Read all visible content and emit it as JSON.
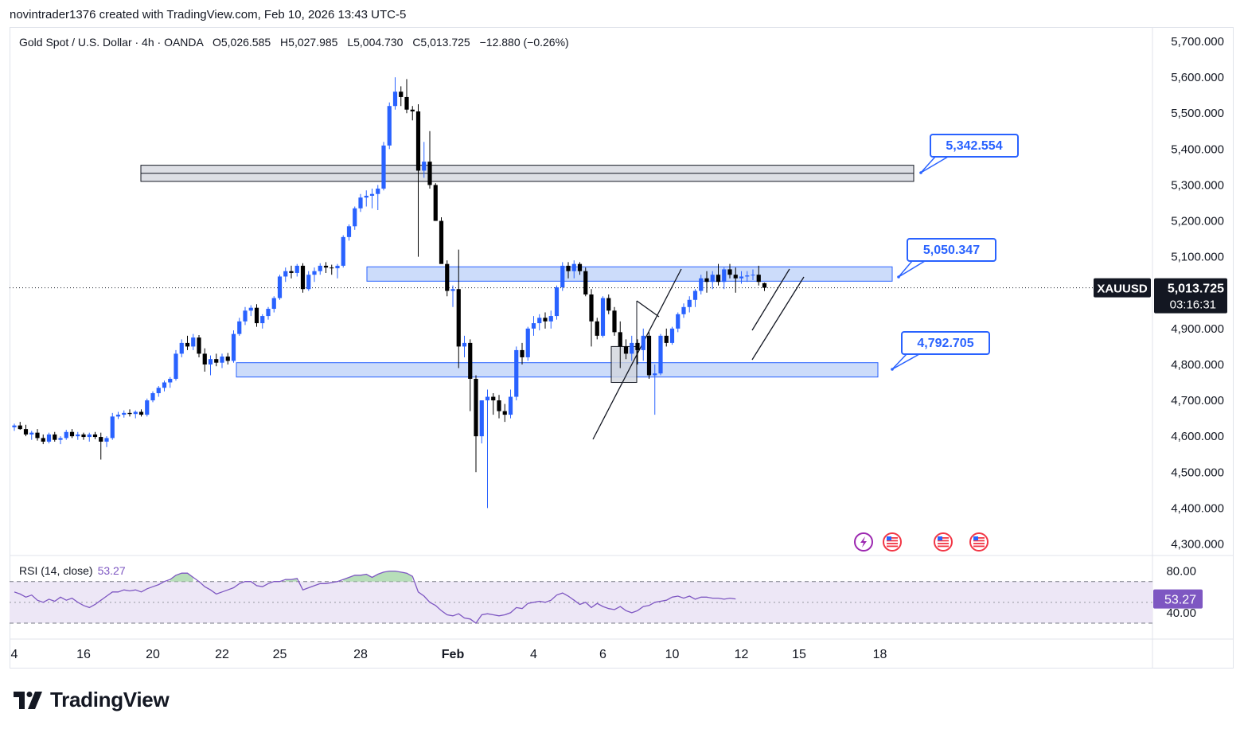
{
  "header": {
    "attribution": "novintrader1376 created with TradingView.com, Feb 10, 2026 13:43 UTC-5"
  },
  "legend": {
    "symbol_text": "Gold Spot / U.S. Dollar · 4h · OANDA",
    "open": "O5,026.585",
    "high": "H5,027.985",
    "low": "L5,004.730",
    "close": "C5,013.725",
    "change": "−12.880 (−0.26%)"
  },
  "rsi_legend": {
    "label": "RSI (14, close)",
    "value": "53.27"
  },
  "footer": {
    "brand": "TradingView"
  },
  "colors": {
    "up": "#2962ff",
    "down": "#000000",
    "zone_blue": "#bbd0f8",
    "zone_gray": "#d1d4dc",
    "rsi_line": "#7e57c2",
    "rsi_band": "#ede7f6",
    "rsi_overbought_fill": "#a5d6a7",
    "callout_border": "#2962ff"
  },
  "chart_data": [
    {
      "type": "candlestick",
      "title": "Gold Spot / U.S. Dollar",
      "interval": "4h",
      "y_axis": {
        "ticks": [
          4300,
          4400,
          4500,
          4600,
          4700,
          4800,
          4900,
          5000,
          5100,
          5200,
          5300,
          5400,
          5500,
          5600,
          5700
        ],
        "tick_labels": [
          "4,300.000",
          "4,400.000",
          "4,500.000",
          "4,600.000",
          "4,700.000",
          "4,800.000",
          "4,900.000",
          "5,000.000",
          "5,100.000",
          "5,200.000",
          "5,300.000",
          "5,400.000",
          "5,500.000",
          "5,600.000",
          "5,700.000"
        ],
        "range": [
          4270,
          5740
        ]
      },
      "x_axis": {
        "tick_labels": [
          "4",
          "16",
          "20",
          "22",
          "25",
          "28",
          "Feb",
          "4",
          "6",
          "10",
          "12",
          "15",
          "18"
        ],
        "tick_index": [
          0,
          12,
          24,
          36,
          46,
          60,
          76,
          90,
          102,
          114,
          126,
          136,
          150
        ]
      },
      "last_price": {
        "symbol": "XAUUSD",
        "price": "5,013.725",
        "countdown": "03:16:31",
        "value": 5013.725
      },
      "candles": [
        [
          4625,
          4635,
          4615,
          4630
        ],
        [
          4630,
          4640,
          4618,
          4620
        ],
        [
          4620,
          4632,
          4600,
          4605
        ],
        [
          4605,
          4615,
          4590,
          4610
        ],
        [
          4610,
          4620,
          4588,
          4595
        ],
        [
          4595,
          4605,
          4578,
          4585
        ],
        [
          4585,
          4610,
          4580,
          4605
        ],
        [
          4605,
          4612,
          4585,
          4590
        ],
        [
          4590,
          4600,
          4578,
          4595
        ],
        [
          4595,
          4618,
          4590,
          4612
        ],
        [
          4612,
          4620,
          4595,
          4600
        ],
        [
          4600,
          4612,
          4590,
          4605
        ],
        [
          4605,
          4610,
          4590,
          4598
        ],
        [
          4598,
          4610,
          4585,
          4605
        ],
        [
          4605,
          4612,
          4592,
          4598
        ],
        [
          4598,
          4610,
          4535,
          4585
        ],
        [
          4585,
          4600,
          4570,
          4595
        ],
        [
          4595,
          4665,
          4590,
          4655
        ],
        [
          4655,
          4668,
          4648,
          4660
        ],
        [
          4660,
          4672,
          4652,
          4665
        ],
        [
          4665,
          4675,
          4655,
          4662
        ],
        [
          4662,
          4672,
          4650,
          4668
        ],
        [
          4668,
          4675,
          4655,
          4660
        ],
        [
          4660,
          4705,
          4655,
          4700
        ],
        [
          4700,
          4725,
          4695,
          4720
        ],
        [
          4720,
          4740,
          4710,
          4735
        ],
        [
          4735,
          4755,
          4725,
          4750
        ],
        [
          4750,
          4765,
          4735,
          4760
        ],
        [
          4760,
          4840,
          4755,
          4830
        ],
        [
          4830,
          4870,
          4820,
          4860
        ],
        [
          4860,
          4880,
          4840,
          4850
        ],
        [
          4850,
          4885,
          4840,
          4875
        ],
        [
          4875,
          4882,
          4820,
          4830
        ],
        [
          4830,
          4845,
          4780,
          4800
        ],
        [
          4800,
          4825,
          4770,
          4815
        ],
        [
          4815,
          4830,
          4795,
          4805
        ],
        [
          4805,
          4830,
          4790,
          4822
        ],
        [
          4822,
          4832,
          4800,
          4810
        ],
        [
          4810,
          4895,
          4805,
          4885
        ],
        [
          4885,
          4930,
          4880,
          4920
        ],
        [
          4920,
          4960,
          4910,
          4950
        ],
        [
          4950,
          4965,
          4935,
          4958
        ],
        [
          4958,
          4968,
          4905,
          4915
        ],
        [
          4915,
          4940,
          4900,
          4935
        ],
        [
          4935,
          4960,
          4925,
          4955
        ],
        [
          4955,
          4990,
          4945,
          4985
        ],
        [
          4985,
          5050,
          4980,
          5045
        ],
        [
          5045,
          5070,
          5030,
          5060
        ],
        [
          5060,
          5075,
          5040,
          5055
        ],
        [
          5055,
          5080,
          5045,
          5075
        ],
        [
          5075,
          5082,
          5000,
          5010
        ],
        [
          5010,
          5060,
          5005,
          5050
        ],
        [
          5050,
          5070,
          5030,
          5060
        ],
        [
          5060,
          5082,
          5050,
          5075
        ],
        [
          5075,
          5085,
          5055,
          5070
        ],
        [
          5070,
          5078,
          5050,
          5068
        ],
        [
          5068,
          5080,
          5040,
          5075
        ],
        [
          5075,
          5160,
          5070,
          5155
        ],
        [
          5155,
          5190,
          5145,
          5185
        ],
        [
          5185,
          5240,
          5175,
          5235
        ],
        [
          5235,
          5275,
          5225,
          5265
        ],
        [
          5265,
          5285,
          5240,
          5270
        ],
        [
          5270,
          5290,
          5235,
          5275
        ],
        [
          5275,
          5300,
          5230,
          5290
        ],
        [
          5290,
          5420,
          5285,
          5410
        ],
        [
          5410,
          5530,
          5400,
          5520
        ],
        [
          5520,
          5600,
          5510,
          5560
        ],
        [
          5560,
          5575,
          5520,
          5545
        ],
        [
          5545,
          5595,
          5500,
          5510
        ],
        [
          5510,
          5520,
          5480,
          5505
        ],
        [
          5505,
          5525,
          5100,
          5340
        ],
        [
          5340,
          5420,
          5320,
          5365
        ],
        [
          5365,
          5450,
          5290,
          5300
        ],
        [
          5300,
          5305,
          5200,
          5200
        ],
        [
          5200,
          5210,
          5090,
          5080
        ],
        [
          5080,
          5090,
          4990,
          5005
        ],
        [
          5005,
          5020,
          4960,
          5010
        ],
        [
          5010,
          5120,
          4790,
          4850
        ],
        [
          4850,
          4880,
          4820,
          4860
        ],
        [
          4860,
          4870,
          4670,
          4760
        ],
        [
          4760,
          4770,
          4500,
          4600
        ],
        [
          4600,
          4700,
          4580,
          4700
        ],
        [
          4700,
          4730,
          4400,
          4710
        ],
        [
          4710,
          4720,
          4660,
          4700
        ],
        [
          4700,
          4715,
          4650,
          4670
        ],
        [
          4670,
          4690,
          4640,
          4660
        ],
        [
          4660,
          4730,
          4650,
          4710
        ],
        [
          4710,
          4850,
          4700,
          4840
        ],
        [
          4840,
          4860,
          4800,
          4820
        ],
        [
          4820,
          4905,
          4810,
          4900
        ],
        [
          4900,
          4935,
          4880,
          4915
        ],
        [
          4915,
          4940,
          4895,
          4930
        ],
        [
          4930,
          4945,
          4900,
          4920
        ],
        [
          4920,
          4950,
          4900,
          4935
        ],
        [
          4935,
          5020,
          4925,
          5015
        ],
        [
          5015,
          5085,
          5005,
          5075
        ],
        [
          5075,
          5085,
          5040,
          5060
        ],
        [
          5060,
          5090,
          5040,
          5080
        ],
        [
          5080,
          5085,
          5050,
          5060
        ],
        [
          5060,
          5070,
          4990,
          4995
        ],
        [
          4995,
          5010,
          4850,
          4920
        ],
        [
          4920,
          4930,
          4870,
          4880
        ],
        [
          4880,
          4990,
          4875,
          4985
        ],
        [
          4985,
          4995,
          4940,
          4950
        ],
        [
          4950,
          4960,
          4880,
          4890
        ],
        [
          4890,
          4920,
          4790,
          4850
        ],
        [
          4850,
          4870,
          4815,
          4830
        ],
        [
          4830,
          4880,
          4810,
          4860
        ],
        [
          4860,
          4870,
          4800,
          4840
        ],
        [
          4840,
          4900,
          4810,
          4880
        ],
        [
          4880,
          4890,
          4760,
          4770
        ],
        [
          4770,
          4800,
          4660,
          4775
        ],
        [
          4775,
          4885,
          4770,
          4880
        ],
        [
          4880,
          4900,
          4850,
          4860
        ],
        [
          4860,
          4905,
          4855,
          4900
        ],
        [
          4900,
          4945,
          4890,
          4940
        ],
        [
          4940,
          4970,
          4930,
          4960
        ],
        [
          4960,
          4990,
          4945,
          4980
        ],
        [
          4980,
          5010,
          4960,
          5005
        ],
        [
          5005,
          5050,
          4995,
          5040
        ],
        [
          5040,
          5060,
          5000,
          5030
        ],
        [
          5030,
          5060,
          5010,
          5050
        ],
        [
          5050,
          5080,
          5020,
          5030
        ],
        [
          5030,
          5070,
          5010,
          5065
        ],
        [
          5065,
          5080,
          5040,
          5050
        ],
        [
          5050,
          5070,
          5000,
          5040
        ],
        [
          5040,
          5060,
          5025,
          5045
        ],
        [
          5045,
          5060,
          5030,
          5048
        ],
        [
          5048,
          5065,
          5035,
          5050
        ],
        [
          5050,
          5075,
          5020,
          5030
        ],
        [
          5026.585,
          5027.985,
          5004.73,
          5013.725
        ]
      ]
    },
    {
      "type": "line",
      "title": "RSI (14, close)",
      "y_axis": {
        "tick_labels": [
          "80.00",
          "40.00"
        ],
        "ticks": [
          80,
          40
        ],
        "range": [
          17,
          95
        ],
        "band": [
          30,
          70
        ],
        "midline": 50
      },
      "last_value": "53.27",
      "values": [
        60,
        58,
        55,
        57,
        52,
        50,
        53,
        51,
        55,
        52,
        54,
        50,
        47,
        45,
        48,
        52,
        56,
        60,
        60,
        62,
        61,
        62,
        60,
        63,
        65,
        67,
        70,
        72,
        76,
        78,
        78,
        74,
        70,
        65,
        62,
        58,
        60,
        62,
        64,
        68,
        70,
        70,
        66,
        65,
        68,
        70,
        70,
        72,
        72,
        73,
        62,
        64,
        66,
        68,
        68,
        69,
        70,
        72,
        74,
        76,
        76,
        77,
        74,
        77,
        79,
        80,
        80,
        79,
        78,
        75,
        60,
        56,
        50,
        47,
        42,
        38,
        37,
        39,
        35,
        34,
        30,
        38,
        39,
        38,
        37,
        38,
        40,
        45,
        44,
        49,
        50,
        51,
        50,
        52,
        57,
        59,
        56,
        52,
        48,
        50,
        45,
        49,
        46,
        44,
        43,
        46,
        42,
        40,
        42,
        46,
        47,
        50,
        51,
        52,
        55,
        56,
        54,
        56,
        53,
        55,
        55,
        54,
        54,
        53,
        54,
        53.27
      ]
    }
  ],
  "annotations": {
    "callouts": [
      {
        "label": "5,342.554",
        "value": 5342.554
      },
      {
        "label": "5,050.347",
        "value": 5050.347
      },
      {
        "label": "4,792.705",
        "value": 4792.705
      }
    ],
    "zones": [
      {
        "name": "supply-zone",
        "color": "gray",
        "from": 5310,
        "to": 5355
      },
      {
        "name": "resistance-zone",
        "color": "blue",
        "from": 5032,
        "to": 5072
      },
      {
        "name": "support-zone",
        "color": "blue",
        "from": 4765,
        "to": 4805
      }
    ],
    "event_icons": [
      "lightning-icon",
      "us-flag-icon",
      "us-flag-icon",
      "us-flag-icon"
    ]
  }
}
